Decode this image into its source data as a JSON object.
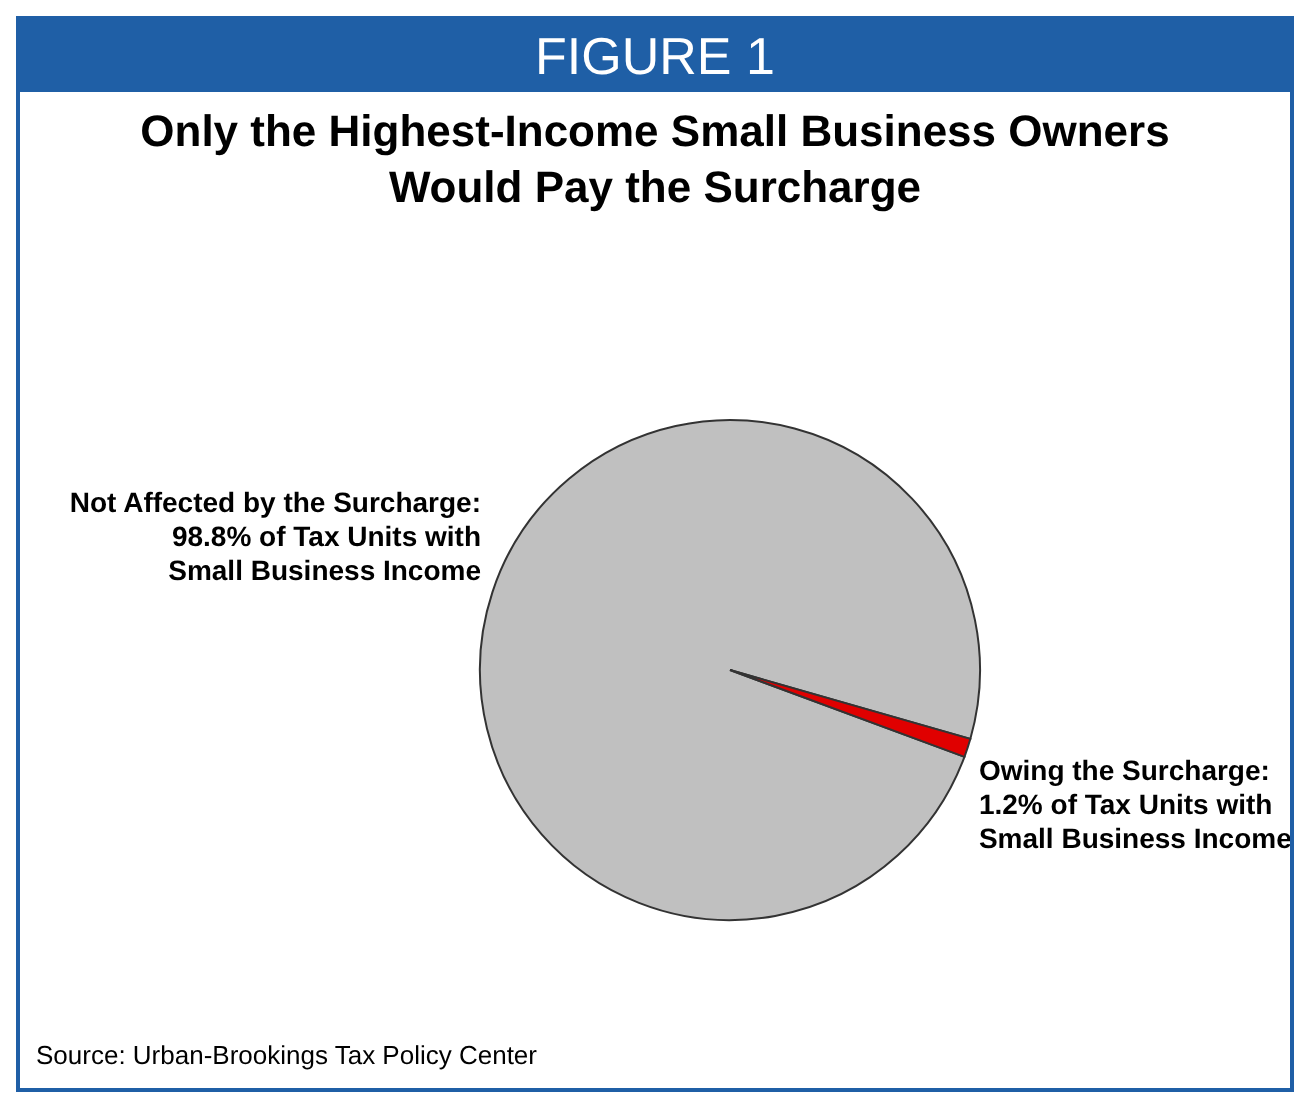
{
  "chart_data": {
    "type": "pie",
    "title": "Only the Highest-Income Small Business Owners Would Pay the Surcharge",
    "annotations": [
      "FIGURE 1",
      "Source:  Urban-Brookings Tax Policy Center"
    ],
    "categories": [
      "Not Affected by the Surcharge:\n98.8% of Tax Units with\nSmall Business Income",
      "Owing the Surcharge:\n1.2% of Tax Units with\nSmall Business Income"
    ],
    "values": [
      98.8,
      1.2
    ],
    "colors": [
      "#c0c0c0",
      "#e00000"
    ],
    "legend": false
  }
}
